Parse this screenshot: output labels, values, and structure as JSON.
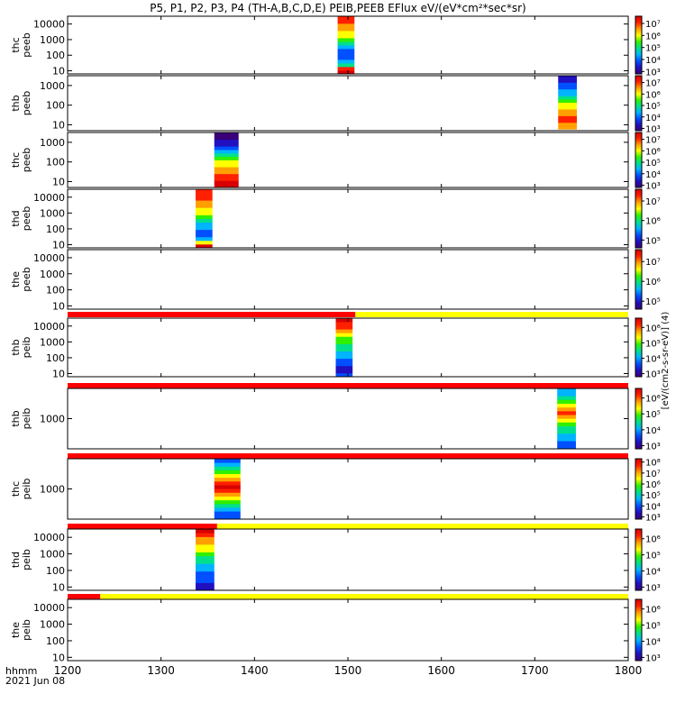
{
  "title": "P5, P1, P2, P3, P4 (TH-A,B,C,D,E) PEIB,PEEB EFlux eV/(eV*cm²*sec*sr)",
  "footer": {
    "time_label": "hhmm",
    "date_label": "2021 Jun 08"
  },
  "colorbar_unit_label": "[eV/(cm2-s-sr-eV)] (4)",
  "colors": {
    "status_red": "#ff0000",
    "status_yellow": "#ffff00",
    "colormap": [
      "#3a0078",
      "#2010c0",
      "#0050ff",
      "#00b4ff",
      "#00e08c",
      "#30f000",
      "#ffff00",
      "#ffa000",
      "#ff2000",
      "#d80000"
    ]
  },
  "chart_data": {
    "type": "heatmap",
    "x_axis": {
      "label": "hhmm",
      "range": [
        1200,
        1800
      ],
      "ticks": [
        "1200",
        "1300",
        "1400",
        "1500",
        "1600",
        "1700",
        "1800"
      ]
    },
    "panels": [
      {
        "name": "thc peeb",
        "label_lines": [
          "thc",
          "peeb"
        ],
        "y_ticks": [
          "10000",
          "1000",
          "100",
          "10"
        ],
        "y_log_range": [
          0.8,
          4.5
        ],
        "colorbar_ticks": [
          "10⁷",
          "10⁶",
          "10⁵",
          "10⁴",
          "10³"
        ],
        "colorbar_log_range": [
          2.8,
          7.6
        ],
        "data_blocks": [
          {
            "x_start": 1489,
            "x_end": 1507,
            "y_bottom": 6,
            "y_top": 31600,
            "profile": [
              9,
              8,
              4,
              3,
              2,
              2,
              2,
              3,
              4,
              5,
              6,
              6,
              7,
              7,
              8,
              8
            ]
          }
        ]
      },
      {
        "name": "thb peeb",
        "label_lines": [
          "thb",
          "peeb"
        ],
        "y_ticks": [
          "1000",
          "100",
          "10"
        ],
        "y_log_range": [
          0.7,
          3.5
        ],
        "colorbar_ticks": [
          "10⁷",
          "10⁶",
          "10⁵",
          "10⁴",
          "10³"
        ],
        "colorbar_log_range": [
          2.8,
          7.6
        ],
        "data_blocks": [
          {
            "x_start": 1725,
            "x_end": 1745,
            "y_bottom": 6,
            "y_top": 3160,
            "profile": [
              7,
              7,
              8,
              8,
              7,
              7,
              6,
              6,
              5,
              4,
              3,
              3,
              2,
              2,
              1,
              1
            ]
          }
        ]
      },
      {
        "name": "thc peeb",
        "label_lines": [
          "thc",
          "peeb"
        ],
        "y_ticks": [
          "1000",
          "100",
          "10"
        ],
        "y_log_range": [
          0.7,
          3.5
        ],
        "colorbar_ticks": [
          "10⁷",
          "10⁶",
          "10⁵",
          "10⁴",
          "10³"
        ],
        "colorbar_log_range": [
          2.8,
          7.6
        ],
        "data_blocks": [
          {
            "x_start": 1357,
            "x_end": 1383,
            "y_bottom": 5,
            "y_top": 3160,
            "profile": [
              9,
              9,
              8,
              8,
              7,
              7,
              6,
              6,
              5,
              4,
              3,
              2,
              1,
              1,
              0,
              0
            ]
          }
        ]
      },
      {
        "name": "thd peeb",
        "label_lines": [
          "thd",
          "peeb"
        ],
        "y_ticks": [
          "10000",
          "1000",
          "100",
          "10"
        ],
        "y_log_range": [
          0.8,
          4.5
        ],
        "colorbar_ticks": [
          "10⁷",
          "10⁶",
          "10⁵"
        ],
        "colorbar_log_range": [
          4.6,
          7.6
        ],
        "data_blocks": [
          {
            "x_start": 1337,
            "x_end": 1355,
            "y_bottom": 6,
            "y_top": 31600,
            "profile": [
              9,
              6,
              3,
              2,
              2,
              3,
              3,
              4,
              5,
              6,
              6,
              7,
              7,
              8,
              8,
              8
            ]
          }
        ]
      },
      {
        "name": "the peeb",
        "label_lines": [
          "the",
          "peeb"
        ],
        "y_ticks": [
          "10000",
          "1000",
          "100",
          "10"
        ],
        "y_log_range": [
          0.8,
          4.5
        ],
        "colorbar_ticks": [
          "10⁷",
          "10⁶",
          "10⁵"
        ],
        "colorbar_log_range": [
          4.6,
          7.6
        ],
        "data_blocks": []
      },
      {
        "name": "thb peib",
        "label_lines": [
          "thb",
          "peib"
        ],
        "y_ticks": [
          "10000",
          "1000",
          "100",
          "10"
        ],
        "y_log_range": [
          0.8,
          4.5
        ],
        "colorbar_ticks": [
          "10⁶",
          "10⁵",
          "10⁴",
          "10³"
        ],
        "colorbar_log_range": [
          2.8,
          6.6
        ],
        "status_bar": [
          {
            "x_start": 1200,
            "x_end": 1508,
            "color": "red"
          },
          {
            "x_start": 1508,
            "x_end": 1800,
            "color": "yellow"
          }
        ],
        "data_blocks": [
          {
            "x_start": 1487,
            "x_end": 1505,
            "y_bottom": 6,
            "y_top": 31600,
            "profile": [
              2,
              1,
              1,
              2,
              2,
              3,
              3,
              4,
              4,
              5,
              5,
              6,
              7,
              8,
              8,
              9
            ]
          }
        ]
      },
      {
        "name": "thb peib",
        "label_lines": [
          "thb",
          "peib"
        ],
        "y_ticks": [
          "1000"
        ],
        "y_log_range": [
          2.1,
          3.9
        ],
        "colorbar_ticks": [
          "10⁶",
          "10⁵",
          "10⁴",
          "10³"
        ],
        "colorbar_log_range": [
          2.8,
          6.6
        ],
        "status_bar": [
          {
            "x_start": 1200,
            "x_end": 1800,
            "color": "red"
          }
        ],
        "data_blocks": [
          {
            "x_start": 1724,
            "x_end": 1744,
            "y_bottom": 130,
            "y_top": 8000,
            "profile": [
              2,
              2,
              3,
              3,
              4,
              4,
              5,
              6,
              7,
              8,
              7,
              6,
              5,
              4,
              3,
              3
            ]
          }
        ]
      },
      {
        "name": "thc peib",
        "label_lines": [
          "thc",
          "peib"
        ],
        "y_ticks": [
          "1000"
        ],
        "y_log_range": [
          2.1,
          3.9
        ],
        "colorbar_ticks": [
          "10⁸",
          "10⁷",
          "10⁶",
          "10⁵",
          "10⁴",
          "10³"
        ],
        "colorbar_log_range": [
          2.8,
          8.3
        ],
        "status_bar": [
          {
            "x_start": 1200,
            "x_end": 1800,
            "color": "red"
          }
        ],
        "data_blocks": [
          {
            "x_start": 1357,
            "x_end": 1385,
            "y_bottom": 130,
            "y_top": 8000,
            "profile": [
              2,
              2,
              3,
              4,
              5,
              6,
              7,
              8,
              9,
              8,
              7,
              6,
              5,
              4,
              3,
              2
            ]
          }
        ]
      },
      {
        "name": "thd peib",
        "label_lines": [
          "thd",
          "peib"
        ],
        "y_ticks": [
          "10000",
          "1000",
          "100",
          "10"
        ],
        "y_log_range": [
          0.8,
          4.5
        ],
        "colorbar_ticks": [
          "10⁶",
          "10⁵",
          "10⁴",
          "10³"
        ],
        "colorbar_log_range": [
          2.8,
          6.6
        ],
        "status_bar": [
          {
            "x_start": 1200,
            "x_end": 1360,
            "color": "red"
          },
          {
            "x_start": 1360,
            "x_end": 1800,
            "color": "yellow"
          }
        ],
        "data_blocks": [
          {
            "x_start": 1337,
            "x_end": 1357,
            "y_bottom": 6,
            "y_top": 31600,
            "profile": [
              1,
              1,
              2,
              2,
              2,
              3,
              3,
              4,
              4,
              5,
              6,
              6,
              7,
              7,
              8,
              9
            ]
          }
        ]
      },
      {
        "name": "the peib",
        "label_lines": [
          "the",
          "peib"
        ],
        "y_ticks": [
          "10000",
          "1000",
          "100",
          "10"
        ],
        "y_log_range": [
          0.8,
          4.5
        ],
        "colorbar_ticks": [
          "10⁶",
          "10⁵",
          "10⁴",
          "10³"
        ],
        "colorbar_log_range": [
          2.8,
          6.6
        ],
        "status_bar": [
          {
            "x_start": 1200,
            "x_end": 1235,
            "color": "red"
          },
          {
            "x_start": 1235,
            "x_end": 1800,
            "color": "yellow"
          }
        ],
        "data_blocks": []
      }
    ]
  }
}
